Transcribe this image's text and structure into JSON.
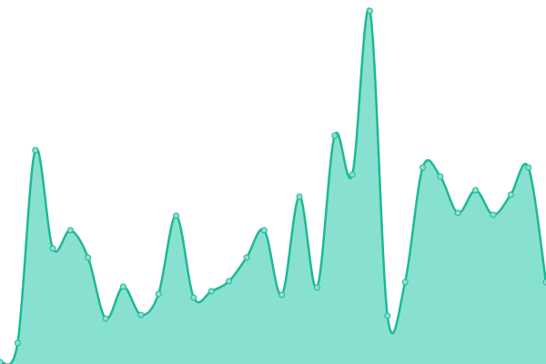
{
  "chart_data": {
    "type": "area",
    "values": [
      2,
      23,
      235,
      127,
      147,
      117,
      50,
      85,
      54,
      77,
      163,
      73,
      80,
      91,
      117,
      147,
      76,
      184,
      84,
      251,
      208,
      388,
      53,
      90,
      216,
      206,
      166,
      191,
      164,
      186,
      216,
      90
    ],
    "ylim": [
      0,
      400
    ],
    "color": "#1db995",
    "fill_color": "#88e1d0"
  }
}
